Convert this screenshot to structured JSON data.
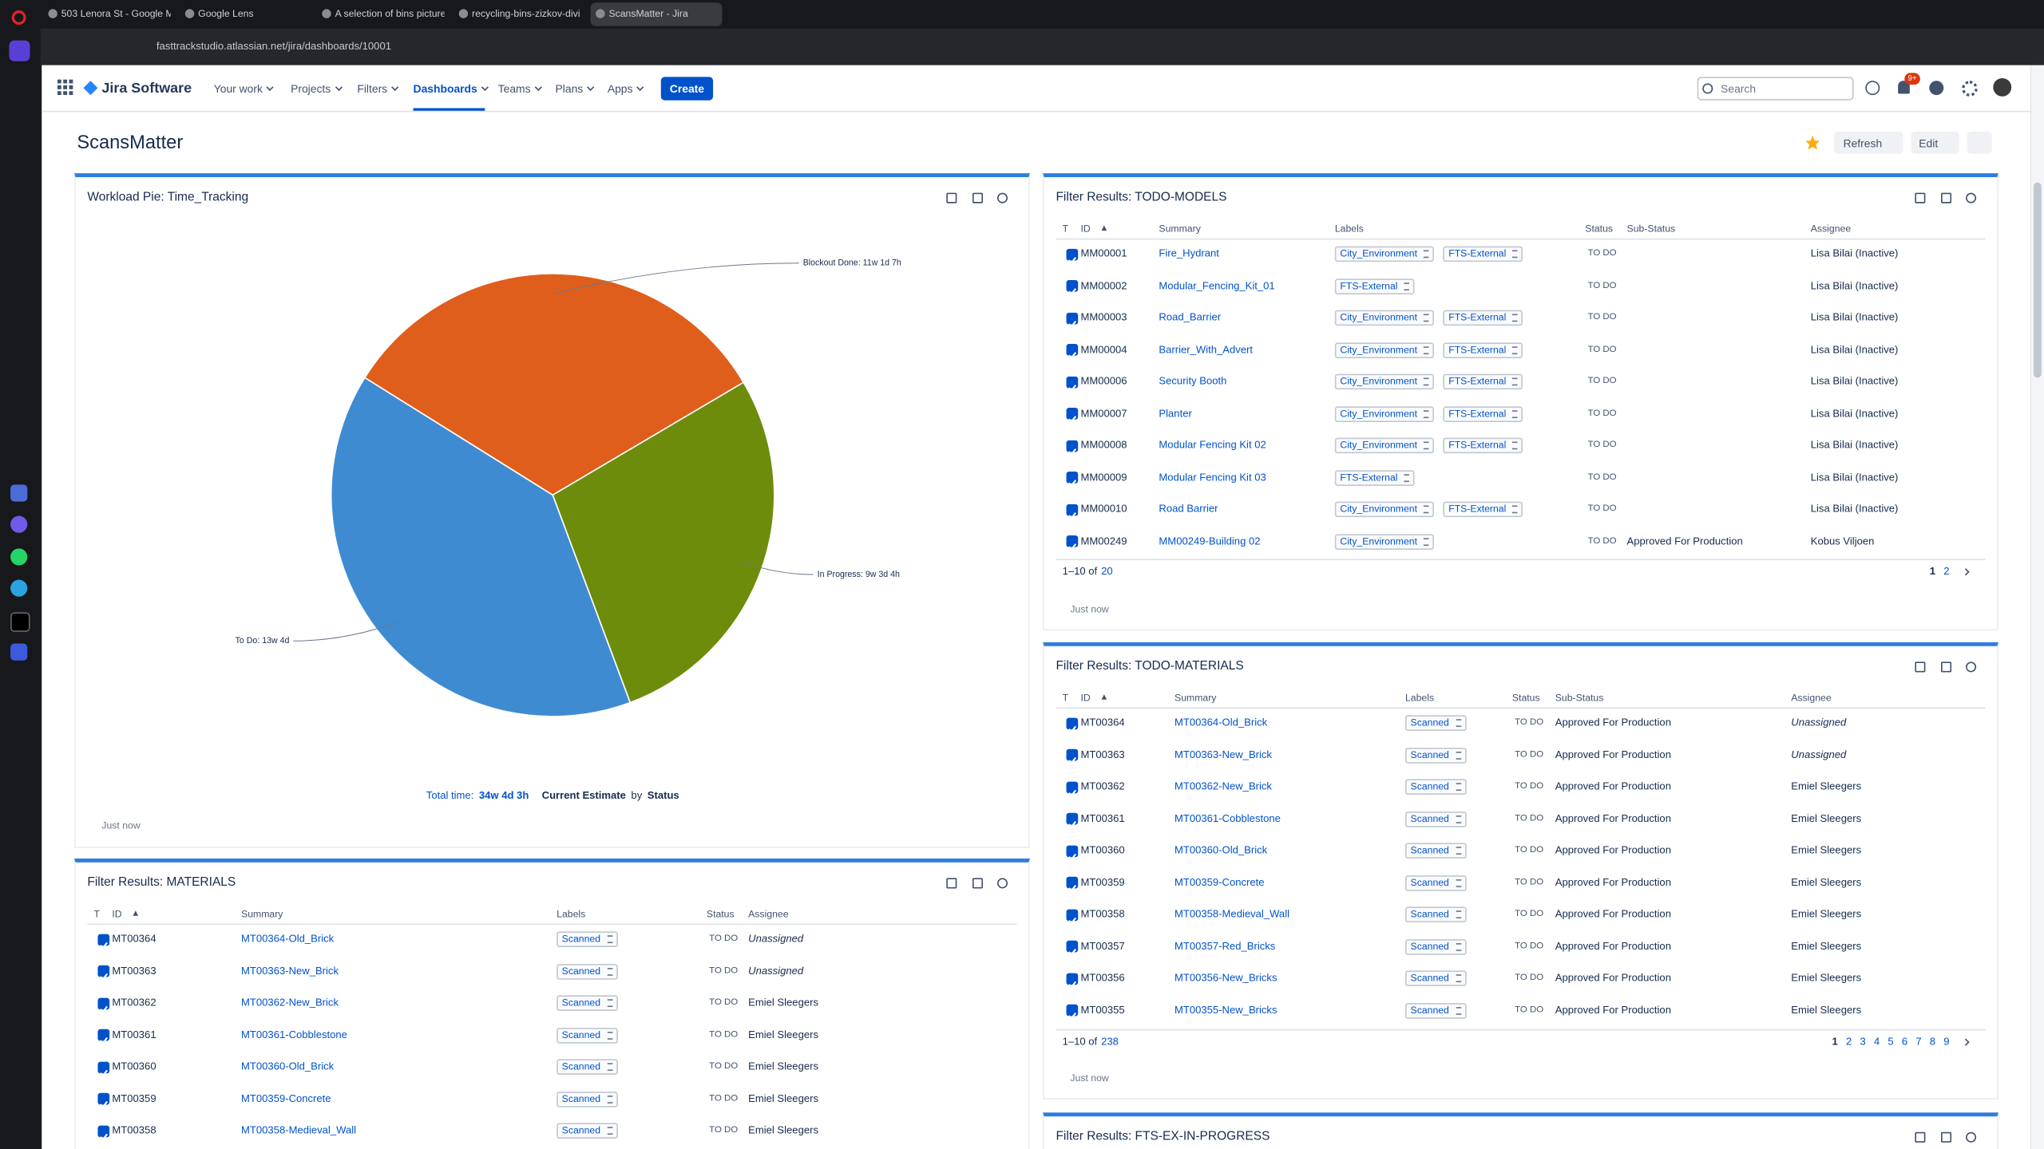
{
  "browser": {
    "tabs": [
      "503 Lenora St - Google M",
      "Google Lens",
      "A selection of bins picture",
      "recycling-bins-zizkov-divi",
      "ScansMatter - Jira"
    ],
    "url": "fasttrackstudio.atlassian.net/jira/dashboards/10001"
  },
  "nav": {
    "product": "Jira Software",
    "items": [
      "Your work",
      "Projects",
      "Filters",
      "Dashboards",
      "Teams",
      "Plans",
      "Apps"
    ],
    "create": "Create",
    "search": "Search",
    "notifications": "9+"
  },
  "dashboard": {
    "title": "ScansMatter",
    "refresh": "Refresh",
    "edit": "Edit"
  },
  "pie_gadget": {
    "title": "Workload Pie: Time_Tracking",
    "total_label": "Total time:",
    "total_value": "34w 4d 3h",
    "estimate": "Current Estimate",
    "by": "by",
    "group": "Status",
    "updated": "Just now"
  },
  "chart_data": {
    "type": "pie",
    "values": [
      455,
      388,
      552
    ],
    "value_labels": [
      "Blockout Done: 11w 1d 7h",
      "In Progress: 9w 3d 4h",
      "To Do: 13w 4d"
    ],
    "colors": [
      "#e05e1b",
      "#6e8c0c",
      "#3f8bd1"
    ]
  },
  "gadgets": [
    {
      "title": "Filter Results: MATERIALS",
      "columns": [
        "T",
        "ID",
        "Summary",
        "Labels",
        "Status",
        "Assignee"
      ],
      "unassigned": "Unassigned",
      "rows": [
        {
          "id": "MT00364",
          "summary": "MT00364-Old_Brick",
          "labels": [
            "Scanned"
          ],
          "status": "TO DO",
          "assignee": null
        },
        {
          "id": "MT00363",
          "summary": "MT00363-New_Brick",
          "labels": [
            "Scanned"
          ],
          "status": "TO DO",
          "assignee": null
        },
        {
          "id": "MT00362",
          "summary": "MT00362-New_Brick",
          "labels": [
            "Scanned"
          ],
          "status": "TO DO",
          "assignee": "Emiel Sleegers"
        },
        {
          "id": "MT00361",
          "summary": "MT00361-Cobblestone",
          "labels": [
            "Scanned"
          ],
          "status": "TO DO",
          "assignee": "Emiel Sleegers"
        },
        {
          "id": "MT00360",
          "summary": "MT00360-Old_Brick",
          "labels": [
            "Scanned"
          ],
          "status": "TO DO",
          "assignee": "Emiel Sleegers"
        },
        {
          "id": "MT00359",
          "summary": "MT00359-Concrete",
          "labels": [
            "Scanned"
          ],
          "status": "TO DO",
          "assignee": "Emiel Sleegers"
        },
        {
          "id": "MT00358",
          "summary": "MT00358-Medieval_Wall",
          "labels": [
            "Scanned"
          ],
          "status": "TO DO",
          "assignee": "Emiel Sleegers"
        }
      ]
    },
    {
      "title": "Filter Results: TODO-MODELS",
      "columns": [
        "T",
        "ID",
        "Summary",
        "Labels",
        "Status",
        "Sub-Status",
        "Assignee"
      ],
      "rows": [
        {
          "id": "MM00001",
          "summary": "Fire_Hydrant",
          "labels": [
            "City_Environment",
            "FTS-External"
          ],
          "status": "TO DO",
          "sub_status": null,
          "assignee": "Lisa Bilai (Inactive)"
        },
        {
          "id": "MM00002",
          "summary": "Modular_Fencing_Kit_01",
          "labels": [
            "FTS-External"
          ],
          "status": "TO DO",
          "sub_status": null,
          "assignee": "Lisa Bilai (Inactive)"
        },
        {
          "id": "MM00003",
          "summary": "Road_Barrier",
          "labels": [
            "City_Environment",
            "FTS-External"
          ],
          "status": "TO DO",
          "sub_status": null,
          "assignee": "Lisa Bilai (Inactive)"
        },
        {
          "id": "MM00004",
          "summary": "Barrier_With_Advert",
          "labels": [
            "City_Environment",
            "FTS-External"
          ],
          "status": "TO DO",
          "sub_status": null,
          "assignee": "Lisa Bilai (Inactive)"
        },
        {
          "id": "MM00006",
          "summary": "Security Booth",
          "labels": [
            "City_Environment",
            "FTS-External"
          ],
          "status": "TO DO",
          "sub_status": null,
          "assignee": "Lisa Bilai (Inactive)"
        },
        {
          "id": "MM00007",
          "summary": "Planter",
          "labels": [
            "City_Environment",
            "FTS-External"
          ],
          "status": "TO DO",
          "sub_status": null,
          "assignee": "Lisa Bilai (Inactive)"
        },
        {
          "id": "MM00008",
          "summary": "Modular Fencing Kit 02",
          "labels": [
            "City_Environment",
            "FTS-External"
          ],
          "status": "TO DO",
          "sub_status": null,
          "assignee": "Lisa Bilai (Inactive)"
        },
        {
          "id": "MM00009",
          "summary": "Modular Fencing Kit 03",
          "labels": [
            "FTS-External"
          ],
          "status": "TO DO",
          "sub_status": null,
          "assignee": "Lisa Bilai (Inactive)"
        },
        {
          "id": "MM00010",
          "summary": "Road Barrier",
          "labels": [
            "City_Environment",
            "FTS-External"
          ],
          "status": "TO DO",
          "sub_status": null,
          "assignee": "Lisa Bilai (Inactive)"
        },
        {
          "id": "MM00249",
          "summary": "MM00249-Building 02",
          "labels": [
            "City_Environment"
          ],
          "status": "TO DO",
          "sub_status": "Approved For Production",
          "assignee": "Kobus Viljoen"
        }
      ],
      "count_label": "1–10 of",
      "total": "20",
      "pages": [
        "1",
        "2"
      ],
      "updated": "Just now"
    },
    {
      "title": "Filter Results: TODO-MATERIALS",
      "columns": [
        "T",
        "ID",
        "Summary",
        "Labels",
        "Status",
        "Sub-Status",
        "Assignee"
      ],
      "unassigned": "Unassigned",
      "rows": [
        {
          "id": "MT00364",
          "summary": "MT00364-Old_Brick",
          "labels": [
            "Scanned"
          ],
          "status": "TO DO",
          "sub_status": "Approved For Production",
          "assignee": null
        },
        {
          "id": "MT00363",
          "summary": "MT00363-New_Brick",
          "labels": [
            "Scanned"
          ],
          "status": "TO DO",
          "sub_status": "Approved For Production",
          "assignee": null
        },
        {
          "id": "MT00362",
          "summary": "MT00362-New_Brick",
          "labels": [
            "Scanned"
          ],
          "status": "TO DO",
          "sub_status": "Approved For Production",
          "assignee": "Emiel Sleegers"
        },
        {
          "id": "MT00361",
          "summary": "MT00361-Cobblestone",
          "labels": [
            "Scanned"
          ],
          "status": "TO DO",
          "sub_status": "Approved For Production",
          "assignee": "Emiel Sleegers"
        },
        {
          "id": "MT00360",
          "summary": "MT00360-Old_Brick",
          "labels": [
            "Scanned"
          ],
          "status": "TO DO",
          "sub_status": "Approved For Production",
          "assignee": "Emiel Sleegers"
        },
        {
          "id": "MT00359",
          "summary": "MT00359-Concrete",
          "labels": [
            "Scanned"
          ],
          "status": "TO DO",
          "sub_status": "Approved For Production",
          "assignee": "Emiel Sleegers"
        },
        {
          "id": "MT00358",
          "summary": "MT00358-Medieval_Wall",
          "labels": [
            "Scanned"
          ],
          "status": "TO DO",
          "sub_status": "Approved For Production",
          "assignee": "Emiel Sleegers"
        },
        {
          "id": "MT00357",
          "summary": "MT00357-Red_Bricks",
          "labels": [
            "Scanned"
          ],
          "status": "TO DO",
          "sub_status": "Approved For Production",
          "assignee": "Emiel Sleegers"
        },
        {
          "id": "MT00356",
          "summary": "MT00356-New_Bricks",
          "labels": [
            "Scanned"
          ],
          "status": "TO DO",
          "sub_status": "Approved For Production",
          "assignee": "Emiel Sleegers"
        },
        {
          "id": "MT00355",
          "summary": "MT00355-New_Bricks",
          "labels": [
            "Scanned"
          ],
          "status": "TO DO",
          "sub_status": "Approved For Production",
          "assignee": "Emiel Sleegers"
        }
      ],
      "count_label": "1–10 of",
      "total": "238",
      "pages": [
        "1",
        "2",
        "3",
        "4",
        "5",
        "6",
        "7",
        "8",
        "9"
      ],
      "updated": "Just now"
    },
    {
      "title": "Filter Results: FTS-EX-IN-PROGRESS"
    }
  ]
}
